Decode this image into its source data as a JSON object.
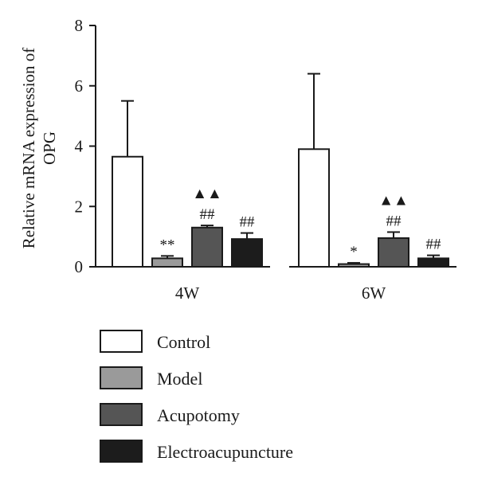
{
  "chart_data": {
    "type": "bar",
    "title": "",
    "xlabel": "",
    "ylabel_lines": [
      "Relative mRNA expression of",
      "OPG"
    ],
    "ylim": [
      0,
      8
    ],
    "yticks": [
      0,
      2,
      4,
      6,
      8
    ],
    "categories": [
      "4W",
      "6W"
    ],
    "series": [
      {
        "name": "Control",
        "color": "#ffffff",
        "values": [
          3.65,
          3.9
        ],
        "errors": [
          1.85,
          2.5
        ],
        "annotations": [
          "",
          ""
        ]
      },
      {
        "name": "Model",
        "color": "#9a9a9a",
        "values": [
          0.28,
          0.09
        ],
        "errors": [
          0.08,
          0.04
        ],
        "annotations": [
          "**",
          "*"
        ]
      },
      {
        "name": "Acupotomy",
        "color": "#555555",
        "values": [
          1.3,
          0.95
        ],
        "errors": [
          0.07,
          0.2
        ],
        "annotations": [
          "▲▲|##",
          "▲▲|##"
        ]
      },
      {
        "name": "Electroacupuncture",
        "color": "#1c1c1c",
        "values": [
          0.92,
          0.28
        ],
        "errors": [
          0.2,
          0.1
        ],
        "annotations": [
          "##",
          "##"
        ]
      }
    ],
    "legend_placement": "bottom",
    "grid": false
  }
}
